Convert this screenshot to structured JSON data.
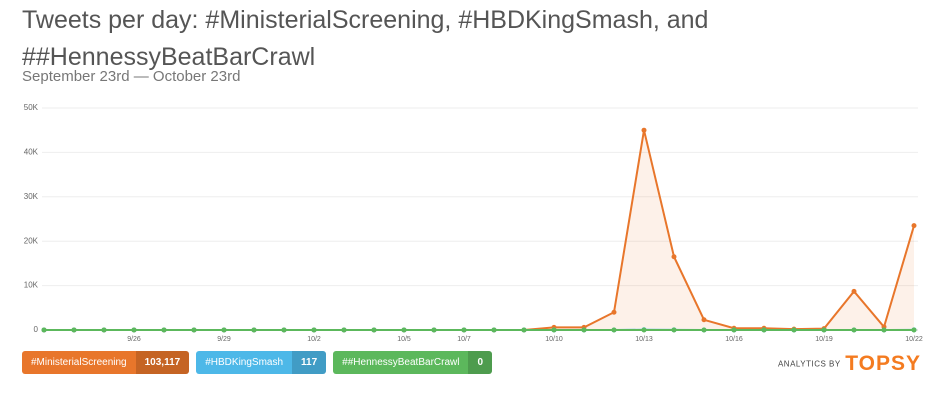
{
  "chart_data": {
    "type": "line",
    "title": "Tweets per day: #MinisterialScreening, #HBDKingSmash, and ##HennessyBeatBarCrawl",
    "subtitle": "September 23rd — October 23rd",
    "categories": [
      null,
      null,
      null,
      "9/26",
      null,
      null,
      "9/29",
      null,
      null,
      "10/2",
      null,
      null,
      "10/5",
      null,
      "10/7",
      null,
      null,
      "10/10",
      null,
      null,
      "10/13",
      null,
      null,
      "10/16",
      null,
      null,
      "10/19",
      null,
      null,
      "10/22"
    ],
    "series": [
      {
        "name": "#MinisterialScreening",
        "color": "#e8762b",
        "total": {
          "value": 103117,
          "label": "103,117"
        },
        "values": [
          0,
          0,
          0,
          0,
          0,
          0,
          0,
          0,
          0,
          0,
          0,
          0,
          0,
          0,
          0,
          0,
          0,
          600,
          600,
          4000,
          45000,
          16500,
          2300,
          400,
          400,
          200,
          300,
          8700,
          700,
          23500
        ]
      },
      {
        "name": "#HBDKingSmash",
        "color": "#4db8e8",
        "total": 117,
        "values": [
          0,
          0,
          0,
          0,
          0,
          0,
          0,
          0,
          0,
          0,
          0,
          0,
          0,
          0,
          0,
          0,
          0,
          0,
          0,
          0,
          60,
          30,
          0,
          0,
          0,
          0,
          0,
          0,
          0,
          27
        ]
      },
      {
        "name": "##HennessyBeatBarCrawl",
        "color": "#5cb85c",
        "total": 0,
        "values": [
          0,
          0,
          0,
          0,
          0,
          0,
          0,
          0,
          0,
          0,
          0,
          0,
          0,
          0,
          0,
          0,
          0,
          0,
          0,
          0,
          0,
          0,
          0,
          0,
          0,
          0,
          0,
          0,
          0,
          0
        ]
      }
    ],
    "ylim": [
      0,
      50000
    ],
    "yticks": [
      0,
      {
        "value": 10000,
        "label": "10K"
      },
      {
        "value": 20000,
        "label": "20K"
      },
      {
        "value": 30000,
        "label": "30K"
      },
      {
        "value": 40000,
        "label": "40K"
      },
      {
        "value": 50000,
        "label": "50K"
      }
    ],
    "grid": true,
    "branding": {
      "prefix": "ANALYTICS BY",
      "brand": "TOPSY"
    }
  }
}
